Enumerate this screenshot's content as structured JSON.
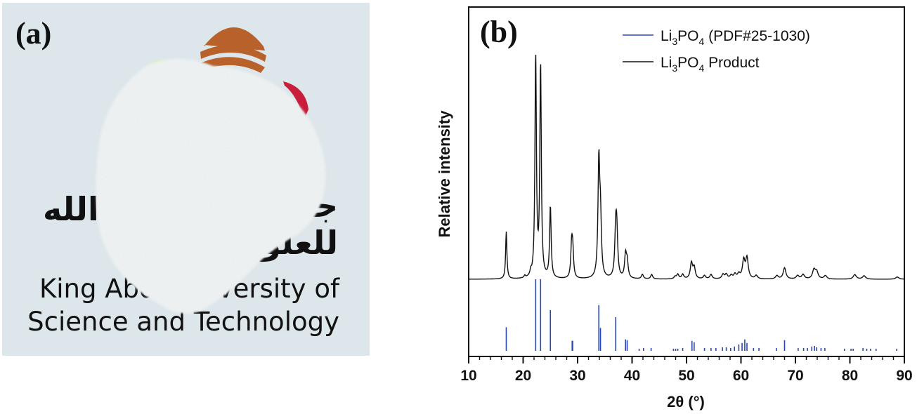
{
  "figure": {
    "panel_a_label": "(a)",
    "panel_b_label": "(b)"
  },
  "photo": {
    "description": "White Li3PO4 powder on KAUST logo card",
    "logo_text_line1": "King Abdullah University of",
    "logo_text_line1_visible_left": "King Abd",
    "logo_text_line1_visible_right": "iversity of",
    "logo_text_line2": "Science and Technology",
    "arabic_right_top": "جا",
    "arabic_right_bottom": "للعلو",
    "arabic_left": "الله",
    "colors": {
      "background": "#dde6ea",
      "powder": "#f4f7f7",
      "logo_orange": "#b8612a",
      "logo_red": "#c81e3c",
      "logo_green": "#dfeec0"
    }
  },
  "chart_data": {
    "type": "line",
    "title": "",
    "xlabel": "2θ (°)",
    "ylabel": "Relative intensity",
    "xlim": [
      10,
      90
    ],
    "xticks": [
      10,
      20,
      30,
      40,
      50,
      60,
      70,
      80,
      90
    ],
    "xtick_labels": [
      "10",
      "20",
      "30",
      "40",
      "50",
      "60",
      "70",
      "80",
      "90"
    ],
    "minor_xtick_step": 2,
    "yticks": [],
    "grid": false,
    "legend_position": "top-right",
    "colors": {
      "product": "#111111",
      "reference": "#2a48b0"
    },
    "series": [
      {
        "name": "Li3PO4 (PDF#25-1030)",
        "legend_main": "Li",
        "legend_sub1": "3",
        "legend_mid": "PO",
        "legend_sub2": "4",
        "legend_suffix": " (PDF#25-1030)",
        "style": "sticks",
        "x": [
          16.9,
          22.3,
          23.2,
          25.0,
          29.0,
          29.1,
          33.9,
          34.2,
          37.0,
          38.8,
          39.1,
          41.3,
          42.1,
          43.5,
          47.6,
          48.0,
          48.4,
          49.3,
          51.0,
          51.4,
          53.3,
          54.5,
          55.4,
          56.6,
          57.3,
          58.1,
          58.8,
          59.6,
          60.2,
          60.7,
          61.1,
          62.3,
          63.3,
          66.5,
          68.0,
          70.5,
          71.5,
          72.2,
          73.0,
          73.5,
          73.9,
          74.7,
          75.4,
          79.0,
          80.2,
          80.6,
          82.4,
          83.1,
          83.8,
          84.8,
          88.6
        ],
        "y": [
          33,
          100,
          100,
          57,
          14,
          14,
          64,
          32,
          47,
          16,
          15,
          3,
          4,
          4,
          3,
          3,
          3,
          4,
          14,
          12,
          4,
          4,
          4,
          5,
          5,
          4,
          6,
          9,
          11,
          16,
          11,
          4,
          4,
          4,
          15,
          4,
          4,
          4,
          6,
          7,
          5,
          4,
          4,
          3,
          3,
          3,
          4,
          3,
          3,
          3,
          3
        ]
      },
      {
        "name": "Li3PO4 Product",
        "legend_main": "Li",
        "legend_sub1": "3",
        "legend_mid": "PO",
        "legend_sub2": "4",
        "legend_suffix": " Product",
        "style": "line",
        "peaks_x": [
          16.9,
          20.3,
          21.4,
          22.3,
          23.2,
          25.0,
          28.9,
          29.1,
          33.9,
          34.2,
          37.0,
          37.2,
          38.8,
          39.1,
          41.9,
          43.6,
          47.9,
          48.4,
          49.3,
          50.9,
          51.4,
          53.3,
          54.5,
          56.7,
          57.3,
          58.2,
          58.9,
          59.6,
          60.5,
          61.1,
          62.8,
          66.6,
          68.0,
          70.4,
          71.4,
          73.4,
          73.9,
          75.5,
          80.9,
          82.6,
          88.7
        ],
        "peaks_y": [
          21,
          1,
          2,
          100,
          95,
          32,
          14,
          12,
          51,
          24,
          20,
          18,
          10,
          7,
          2,
          2,
          1,
          2,
          2,
          7,
          5,
          1.5,
          2,
          2,
          2,
          1.5,
          2,
          2,
          8,
          9,
          1.5,
          1.5,
          5,
          1.5,
          2,
          4,
          3,
          1.5,
          2,
          1.5,
          1
        ]
      }
    ]
  }
}
